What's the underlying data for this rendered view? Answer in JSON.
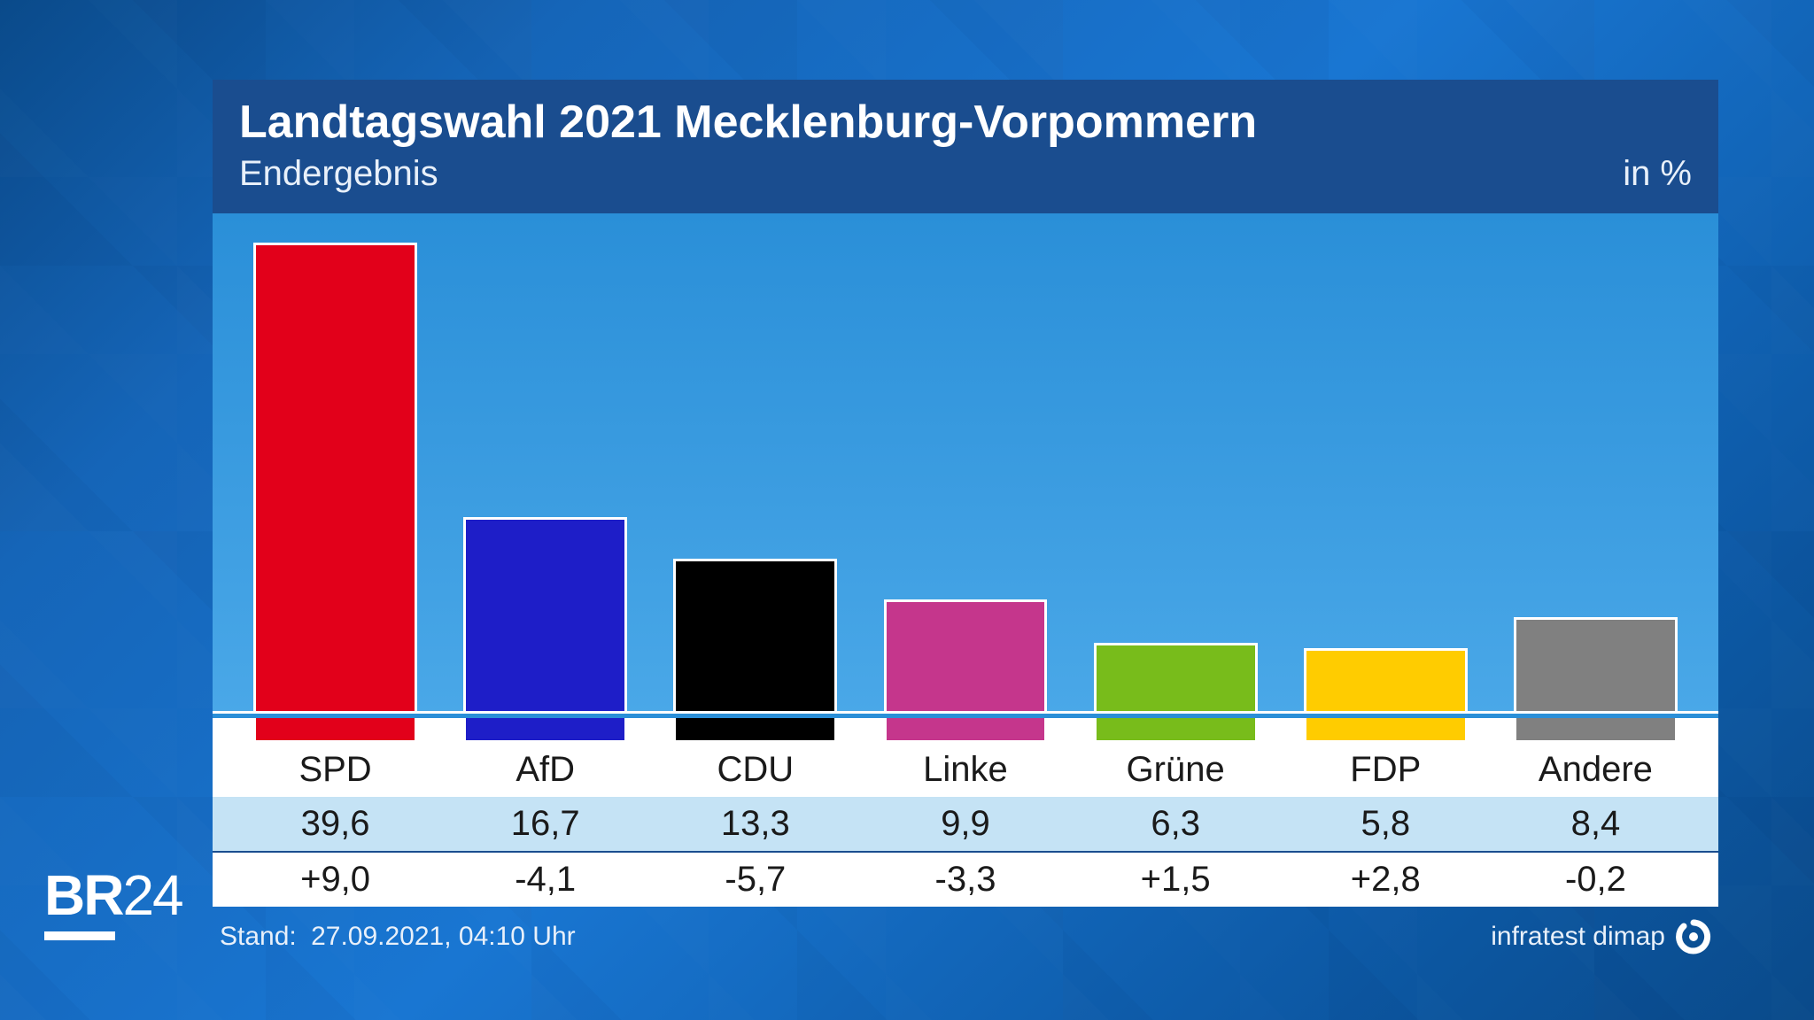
{
  "header": {
    "title": "Landtagswahl 2021 Mecklenburg-Vorpommern",
    "subtitle": "Endergebnis",
    "unit": "in %"
  },
  "chart": {
    "type": "bar",
    "max_value": 42,
    "chart_background": "linear-gradient(180deg,#2a8fd8 0%,#4aa8e8 100%)",
    "bar_border_color": "#ffffff",
    "parties": [
      {
        "name": "SPD",
        "value": 39.6,
        "value_label": "39,6",
        "delta": "+9,0",
        "color": "#e2001a"
      },
      {
        "name": "AfD",
        "value": 16.7,
        "value_label": "16,7",
        "delta": "-4,1",
        "color": "#1e1ec8"
      },
      {
        "name": "CDU",
        "value": 13.3,
        "value_label": "13,3",
        "delta": "-5,7",
        "color": "#000000"
      },
      {
        "name": "Linke",
        "value": 9.9,
        "value_label": "9,9",
        "delta": "-3,3",
        "color": "#c5368c"
      },
      {
        "name": "Grüne",
        "value": 6.3,
        "value_label": "6,3",
        "delta": "+1,5",
        "color": "#78bc1b"
      },
      {
        "name": "FDP",
        "value": 5.8,
        "value_label": "5,8",
        "delta": "+2,8",
        "color": "#ffcc00"
      },
      {
        "name": "Andere",
        "value": 8.4,
        "value_label": "8,4",
        "delta": "-0,2",
        "color": "#808080"
      }
    ],
    "row_colors": {
      "names_bg": "#ffffff",
      "values_bg": "#c5e3f5",
      "delta_bg": "#ffffff",
      "text": "#1a1a1a"
    }
  },
  "footer": {
    "label": "Stand:",
    "timestamp": "27.09.2021, 04:10 Uhr",
    "source": "infratest dimap"
  },
  "broadcaster": {
    "prefix": "BR",
    "suffix": "24"
  }
}
